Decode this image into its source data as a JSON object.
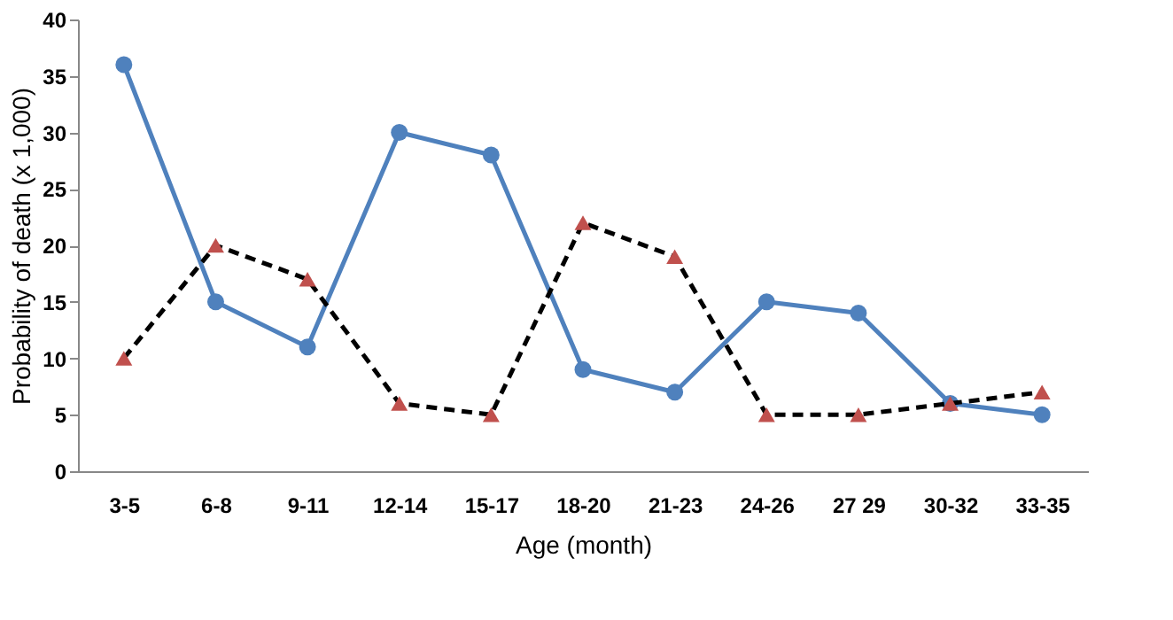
{
  "chart_data": {
    "type": "line",
    "xlabel": "Age (month)",
    "ylabel": "Probability of death (x 1,000)",
    "categories": [
      "3-5",
      "6-8",
      "9-11",
      "12-14",
      "15-17",
      "18-20",
      "21-23",
      "24-26",
      "27 29",
      "30-32",
      "33-35"
    ],
    "series": [
      {
        "color": "#4f81bd",
        "marker": "circle",
        "line_style": "solid",
        "values": [
          36,
          15,
          11,
          30,
          28,
          9,
          7,
          15,
          14,
          6,
          5
        ]
      },
      {
        "color": "#c0504d",
        "marker": "triangle",
        "line_style": "dashed",
        "values": [
          10,
          20,
          17,
          6,
          5,
          22,
          19,
          5,
          5,
          6,
          7
        ]
      }
    ],
    "ylim": [
      0,
      40
    ],
    "yticks": [
      0,
      5,
      10,
      15,
      20,
      25,
      30,
      35,
      40
    ],
    "grid": false
  }
}
